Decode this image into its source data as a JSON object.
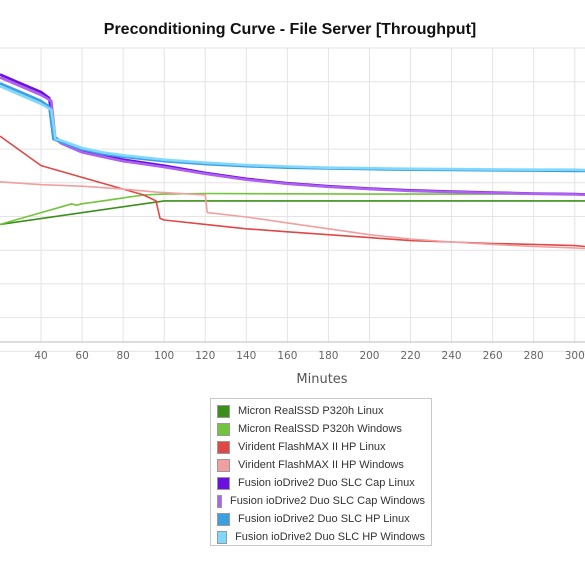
{
  "chart_data": {
    "type": "line",
    "title": "Preconditioning Curve - File Server [Throughput]",
    "xlabel": "Minutes",
    "ylabel": "",
    "xlim": [
      20,
      305
    ],
    "x_ticks": [
      40,
      60,
      80,
      100,
      120,
      140,
      160,
      180,
      200,
      220,
      240,
      260,
      280,
      300
    ],
    "x_tick_labels": [
      "40",
      "60",
      "80",
      "100",
      "120",
      "140",
      "160",
      "180",
      "200",
      "220",
      "240",
      "260",
      "280",
      "300"
    ],
    "grid": true,
    "legend_position": "bottom-center",
    "series": [
      {
        "name": "Micron RealSSD P320h Linux",
        "color": "#3a8f1a",
        "x": [
          20,
          100,
          120,
          160,
          200,
          250,
          305
        ],
        "y": [
          0.6,
          0.52,
          0.52,
          0.52,
          0.52,
          0.52,
          0.52
        ]
      },
      {
        "name": "Micron RealSSD P320h Windows",
        "color": "#72c43c",
        "x": [
          20,
          30,
          40,
          50,
          55,
          57,
          60,
          70,
          80,
          90,
          100,
          120,
          160,
          200,
          250,
          305
        ],
        "y": [
          0.6,
          0.58,
          0.56,
          0.54,
          0.53,
          0.535,
          0.53,
          0.52,
          0.51,
          0.5,
          0.497,
          0.495,
          0.496,
          0.497,
          0.497,
          0.497
        ]
      },
      {
        "name": "Virident FlashMAX II HP Linux",
        "color": "#e04848",
        "x": [
          20,
          30,
          40,
          60,
          80,
          90,
          96,
          98,
          100,
          120,
          140,
          160,
          180,
          200,
          220,
          240,
          260,
          280,
          300,
          305
        ],
        "y": [
          0.3,
          0.35,
          0.4,
          0.44,
          0.48,
          0.5,
          0.52,
          0.58,
          0.585,
          0.6,
          0.615,
          0.625,
          0.635,
          0.645,
          0.655,
          0.66,
          0.665,
          0.668,
          0.672,
          0.675
        ]
      },
      {
        "name": "Virident FlashMAX II HP Windows",
        "color": "#f0a0a0",
        "x": [
          20,
          40,
          60,
          80,
          96,
          120,
          121,
          140,
          160,
          180,
          200,
          220,
          240,
          260,
          280,
          300,
          305
        ],
        "y": [
          0.455,
          0.465,
          0.47,
          0.48,
          0.49,
          0.5,
          0.56,
          0.575,
          0.595,
          0.615,
          0.635,
          0.65,
          0.66,
          0.668,
          0.675,
          0.68,
          0.682
        ]
      },
      {
        "name": "Fusion ioDrive2 Duo SLC Cap Linux",
        "color": "#6a10e0",
        "x": [
          20,
          30,
          40,
          44,
          46,
          50,
          60,
          70,
          80,
          100,
          120,
          140,
          160,
          180,
          200,
          220,
          240,
          260,
          280,
          300,
          305
        ],
        "y": [
          0.09,
          0.12,
          0.15,
          0.17,
          0.3,
          0.32,
          0.35,
          0.365,
          0.38,
          0.4,
          0.425,
          0.445,
          0.46,
          0.47,
          0.478,
          0.484,
          0.488,
          0.492,
          0.495,
          0.497,
          0.498
        ]
      },
      {
        "name": "Fusion ioDrive2 Duo SLC Cap Windows",
        "color": "#b060f0",
        "x": [
          20,
          30,
          40,
          45,
          47,
          50,
          60,
          70,
          80,
          100,
          120,
          140,
          160,
          180,
          200,
          220,
          240,
          260,
          280,
          300,
          305
        ],
        "y": [
          0.1,
          0.13,
          0.16,
          0.18,
          0.31,
          0.325,
          0.355,
          0.37,
          0.385,
          0.405,
          0.428,
          0.448,
          0.462,
          0.472,
          0.48,
          0.486,
          0.49,
          0.493,
          0.496,
          0.498,
          0.499
        ]
      },
      {
        "name": "Fusion ioDrive2 Duo SLC HP Linux",
        "color": "#3aa0e0",
        "x": [
          20,
          30,
          40,
          44,
          46,
          50,
          60,
          70,
          80,
          100,
          120,
          140,
          160,
          180,
          200,
          220,
          240,
          260,
          280,
          300,
          305
        ],
        "y": [
          0.12,
          0.15,
          0.18,
          0.2,
          0.31,
          0.32,
          0.345,
          0.36,
          0.37,
          0.385,
          0.395,
          0.402,
          0.407,
          0.41,
          0.412,
          0.414,
          0.415,
          0.416,
          0.417,
          0.418,
          0.418
        ]
      },
      {
        "name": "Fusion ioDrive2 Duo SLC HP Windows",
        "color": "#80d8ff",
        "x": [
          20,
          30,
          40,
          45,
          47,
          50,
          60,
          70,
          80,
          100,
          120,
          140,
          160,
          180,
          200,
          220,
          240,
          260,
          280,
          300,
          305
        ],
        "y": [
          0.13,
          0.16,
          0.19,
          0.21,
          0.31,
          0.315,
          0.34,
          0.355,
          0.365,
          0.38,
          0.39,
          0.398,
          0.403,
          0.407,
          0.409,
          0.411,
          0.412,
          0.413,
          0.414,
          0.414,
          0.415
        ]
      }
    ]
  }
}
